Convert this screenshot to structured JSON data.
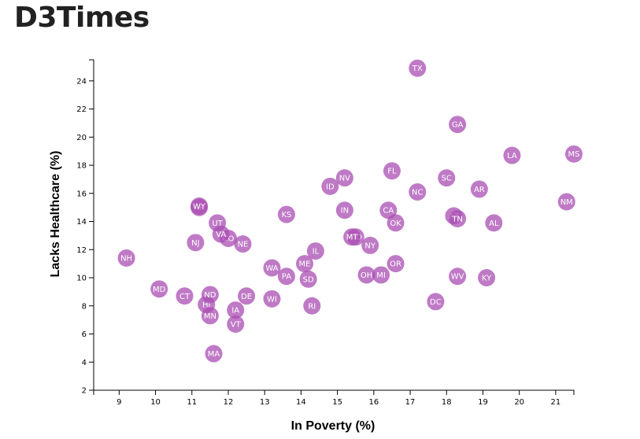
{
  "page": {
    "title": "D3Times"
  },
  "chart_data": {
    "type": "scatter",
    "title": "",
    "xlabel": "In Poverty (%)",
    "ylabel": "Lacks Healthcare (%)",
    "xlim": [
      8.3,
      21.5
    ],
    "ylim": [
      2,
      25.5
    ],
    "xticks": [
      9,
      10,
      11,
      12,
      13,
      14,
      15,
      16,
      17,
      18,
      19,
      20,
      21
    ],
    "yticks": [
      2,
      4,
      6,
      8,
      10,
      12,
      14,
      16,
      18,
      20,
      22,
      24
    ],
    "grid": false,
    "marker_color": "#a94db3",
    "label_color": "#ffffff",
    "points": [
      {
        "label": "AL",
        "x": 19.3,
        "y": 13.9
      },
      {
        "label": "AK",
        "x": 11.2,
        "y": 15.0
      },
      {
        "label": "AZ",
        "x": 18.2,
        "y": 14.4
      },
      {
        "label": "AR",
        "x": 18.9,
        "y": 16.3
      },
      {
        "label": "CA",
        "x": 16.4,
        "y": 14.8
      },
      {
        "label": "CO",
        "x": 12.0,
        "y": 12.8
      },
      {
        "label": "CT",
        "x": 10.8,
        "y": 8.7
      },
      {
        "label": "DE",
        "x": 12.5,
        "y": 8.7
      },
      {
        "label": "DC",
        "x": 17.7,
        "y": 8.3
      },
      {
        "label": "FL",
        "x": 16.5,
        "y": 17.6
      },
      {
        "label": "GA",
        "x": 18.3,
        "y": 20.9
      },
      {
        "label": "HI",
        "x": 11.4,
        "y": 8.1
      },
      {
        "label": "ID",
        "x": 14.8,
        "y": 16.5
      },
      {
        "label": "IL",
        "x": 14.4,
        "y": 11.9
      },
      {
        "label": "IN",
        "x": 15.2,
        "y": 14.8
      },
      {
        "label": "IA",
        "x": 12.2,
        "y": 7.7
      },
      {
        "label": "KS",
        "x": 13.6,
        "y": 14.5
      },
      {
        "label": "KY",
        "x": 19.1,
        "y": 10.0
      },
      {
        "label": "LA",
        "x": 19.8,
        "y": 18.7
      },
      {
        "label": "ME",
        "x": 14.1,
        "y": 11.0
      },
      {
        "label": "MD",
        "x": 10.1,
        "y": 9.2
      },
      {
        "label": "MA",
        "x": 11.6,
        "y": 4.6
      },
      {
        "label": "MI",
        "x": 16.2,
        "y": 10.2
      },
      {
        "label": "MN",
        "x": 11.5,
        "y": 7.3
      },
      {
        "label": "MS",
        "x": 21.5,
        "y": 18.8
      },
      {
        "label": "MO",
        "x": 15.5,
        "y": 12.9
      },
      {
        "label": "MT",
        "x": 15.4,
        "y": 12.9
      },
      {
        "label": "NE",
        "x": 12.4,
        "y": 12.4
      },
      {
        "label": "NV",
        "x": 15.2,
        "y": 17.1
      },
      {
        "label": "NH",
        "x": 9.2,
        "y": 11.4
      },
      {
        "label": "NJ",
        "x": 11.1,
        "y": 12.5
      },
      {
        "label": "NM",
        "x": 21.3,
        "y": 15.4
      },
      {
        "label": "NY",
        "x": 15.9,
        "y": 12.3
      },
      {
        "label": "NC",
        "x": 17.2,
        "y": 16.1
      },
      {
        "label": "ND",
        "x": 11.5,
        "y": 8.8
      },
      {
        "label": "OH",
        "x": 15.8,
        "y": 10.2
      },
      {
        "label": "OK",
        "x": 16.6,
        "y": 13.9
      },
      {
        "label": "OR",
        "x": 16.6,
        "y": 11.0
      },
      {
        "label": "PA",
        "x": 13.6,
        "y": 10.1
      },
      {
        "label": "RI",
        "x": 14.3,
        "y": 8.0
      },
      {
        "label": "SC",
        "x": 18.0,
        "y": 17.1
      },
      {
        "label": "SD",
        "x": 14.2,
        "y": 9.9
      },
      {
        "label": "TN",
        "x": 18.3,
        "y": 14.2
      },
      {
        "label": "TX",
        "x": 17.2,
        "y": 24.9
      },
      {
        "label": "UT",
        "x": 11.7,
        "y": 13.9
      },
      {
        "label": "VT",
        "x": 12.2,
        "y": 6.7
      },
      {
        "label": "VA",
        "x": 11.8,
        "y": 13.1
      },
      {
        "label": "WA",
        "x": 13.2,
        "y": 10.7
      },
      {
        "label": "WV",
        "x": 18.3,
        "y": 10.1
      },
      {
        "label": "WI",
        "x": 13.2,
        "y": 8.5
      },
      {
        "label": "WY",
        "x": 11.2,
        "y": 15.1
      }
    ]
  }
}
